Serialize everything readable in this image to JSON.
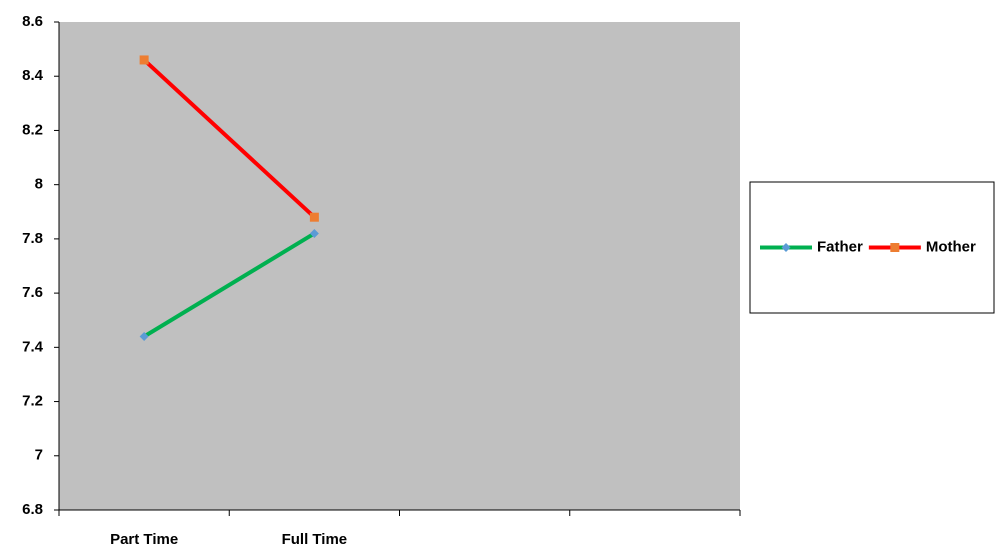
{
  "chart_data": {
    "type": "line",
    "categories": [
      "Part Time",
      "Full Time",
      null,
      null
    ],
    "series": [
      {
        "name": "Father",
        "color": "#00b050",
        "marker": "diamond",
        "marker_color": "#5b9bd5",
        "values": [
          7.44,
          7.82,
          null,
          null
        ]
      },
      {
        "name": "Mother",
        "color": "#ff0000",
        "marker": "square",
        "marker_color": "#ed7d31",
        "values": [
          8.46,
          7.88,
          null,
          null
        ]
      }
    ],
    "ylim": [
      6.8,
      8.6
    ],
    "yticks": [
      6.8,
      7,
      7.2,
      7.4,
      7.6,
      7.8,
      8,
      8.2,
      8.4,
      8.6
    ],
    "grid": false,
    "plot_background": "#c0c0c0",
    "legend": "right"
  }
}
